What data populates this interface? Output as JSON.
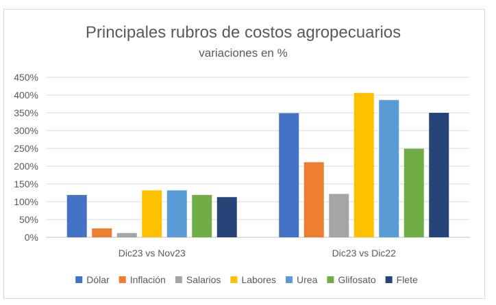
{
  "chart_data": {
    "type": "bar",
    "title": "Principales rubros de costos agropecuarios",
    "subtitle": "variaciones en %",
    "categories": [
      "Dic23 vs Nov23",
      "Dic23 vs Dic22"
    ],
    "ylim": [
      0,
      450
    ],
    "yticks": [
      0,
      50,
      100,
      150,
      200,
      250,
      300,
      350,
      400,
      450
    ],
    "ytick_suffix": "%",
    "grid": true,
    "legend_position": "bottom",
    "series": [
      {
        "name": "Dólar",
        "color": "#4472c4",
        "values": [
          119,
          349
        ]
      },
      {
        "name": "Inflación",
        "color": "#ed7d31",
        "values": [
          25,
          211
        ]
      },
      {
        "name": "Salarios",
        "color": "#a5a5a5",
        "values": [
          12,
          122
        ]
      },
      {
        "name": "Labores",
        "color": "#ffc000",
        "values": [
          132,
          406
        ]
      },
      {
        "name": "Urea",
        "color": "#5b9bd5",
        "values": [
          132,
          386
        ]
      },
      {
        "name": "Glifosato",
        "color": "#70ad47",
        "values": [
          119,
          249
        ]
      },
      {
        "name": "Flete",
        "color": "#264478",
        "values": [
          113,
          350
        ]
      }
    ]
  }
}
